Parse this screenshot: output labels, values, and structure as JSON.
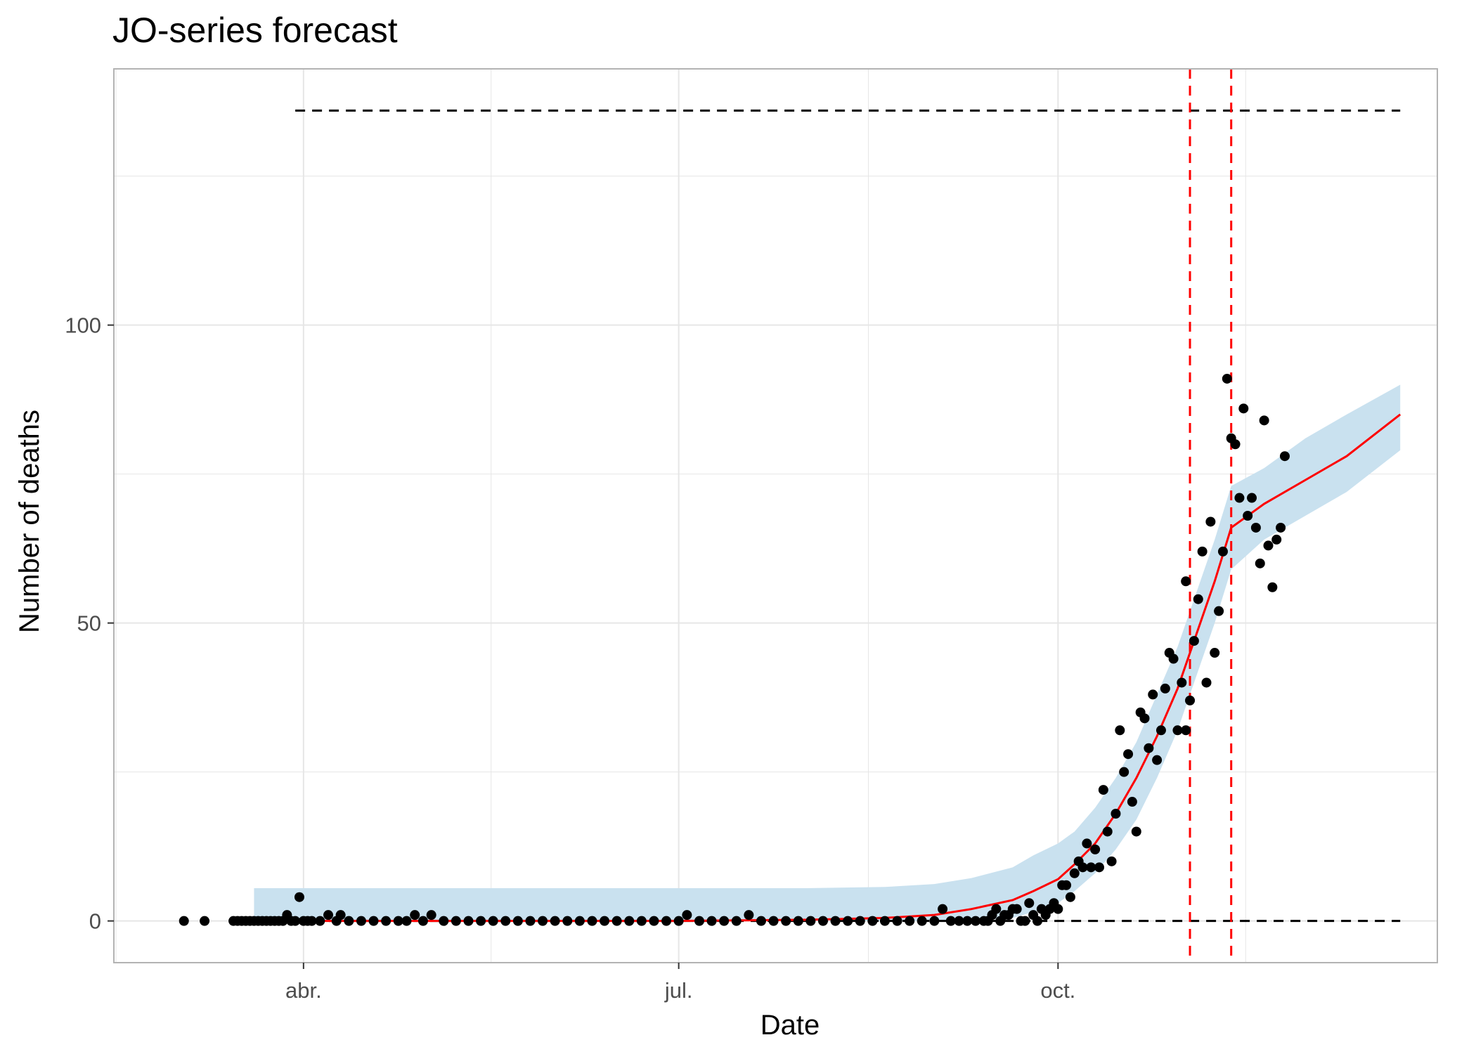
{
  "chart_data": {
    "type": "scatter",
    "title": "JO-series forecast",
    "xlabel": "Date",
    "ylabel": "Number of deaths",
    "x_ticks": [
      {
        "date": "2020-04-01",
        "label": "abr."
      },
      {
        "date": "2020-07-01",
        "label": "jul."
      },
      {
        "date": "2020-10-01",
        "label": "oct."
      }
    ],
    "y_ticks": [
      0,
      50,
      100
    ],
    "xlim": [
      "2020-02-15",
      "2021-01-01"
    ],
    "ylim": [
      -7,
      143
    ],
    "grid": true,
    "colors": {
      "points": "#000000",
      "forecast": "#ff0000",
      "band": "#c9e1ef",
      "reference_lines": "#000000",
      "vertical_markers": "#ff0000",
      "grid": "#e6e6e6",
      "panel_border": "#b3b3b3"
    },
    "reference_lines": {
      "upper": {
        "y": 136,
        "from": "2020-03-30",
        "to": "2020-12-23"
      },
      "lower": {
        "y": 0,
        "from": "2020-03-30",
        "to": "2020-12-23"
      }
    },
    "vertical_markers": [
      "2020-11-02",
      "2020-11-12"
    ],
    "observed": [
      [
        "2020-03-03",
        0
      ],
      [
        "2020-03-08",
        0
      ],
      [
        "2020-03-15",
        0
      ],
      [
        "2020-03-16",
        0
      ],
      [
        "2020-03-17",
        0
      ],
      [
        "2020-03-18",
        0
      ],
      [
        "2020-03-19",
        0
      ],
      [
        "2020-03-20",
        0
      ],
      [
        "2020-03-21",
        0
      ],
      [
        "2020-03-22",
        0
      ],
      [
        "2020-03-23",
        0
      ],
      [
        "2020-03-24",
        0
      ],
      [
        "2020-03-25",
        0
      ],
      [
        "2020-03-26",
        0
      ],
      [
        "2020-03-27",
        0
      ],
      [
        "2020-03-28",
        1
      ],
      [
        "2020-03-29",
        0
      ],
      [
        "2020-03-30",
        0
      ],
      [
        "2020-03-31",
        4
      ],
      [
        "2020-04-01",
        0
      ],
      [
        "2020-04-02",
        0
      ],
      [
        "2020-04-03",
        0
      ],
      [
        "2020-04-05",
        0
      ],
      [
        "2020-04-07",
        1
      ],
      [
        "2020-04-09",
        0
      ],
      [
        "2020-04-10",
        1
      ],
      [
        "2020-04-12",
        0
      ],
      [
        "2020-04-15",
        0
      ],
      [
        "2020-04-18",
        0
      ],
      [
        "2020-04-21",
        0
      ],
      [
        "2020-04-24",
        0
      ],
      [
        "2020-04-26",
        0
      ],
      [
        "2020-04-28",
        1
      ],
      [
        "2020-04-30",
        0
      ],
      [
        "2020-05-02",
        1
      ],
      [
        "2020-05-05",
        0
      ],
      [
        "2020-05-08",
        0
      ],
      [
        "2020-05-11",
        0
      ],
      [
        "2020-05-14",
        0
      ],
      [
        "2020-05-17",
        0
      ],
      [
        "2020-05-20",
        0
      ],
      [
        "2020-05-23",
        0
      ],
      [
        "2020-05-26",
        0
      ],
      [
        "2020-05-29",
        0
      ],
      [
        "2020-06-01",
        0
      ],
      [
        "2020-06-04",
        0
      ],
      [
        "2020-06-07",
        0
      ],
      [
        "2020-06-10",
        0
      ],
      [
        "2020-06-13",
        0
      ],
      [
        "2020-06-16",
        0
      ],
      [
        "2020-06-19",
        0
      ],
      [
        "2020-06-22",
        0
      ],
      [
        "2020-06-25",
        0
      ],
      [
        "2020-06-28",
        0
      ],
      [
        "2020-07-01",
        0
      ],
      [
        "2020-07-03",
        1
      ],
      [
        "2020-07-06",
        0
      ],
      [
        "2020-07-09",
        0
      ],
      [
        "2020-07-12",
        0
      ],
      [
        "2020-07-15",
        0
      ],
      [
        "2020-07-18",
        1
      ],
      [
        "2020-07-21",
        0
      ],
      [
        "2020-07-24",
        0
      ],
      [
        "2020-07-27",
        0
      ],
      [
        "2020-07-30",
        0
      ],
      [
        "2020-08-02",
        0
      ],
      [
        "2020-08-05",
        0
      ],
      [
        "2020-08-08",
        0
      ],
      [
        "2020-08-11",
        0
      ],
      [
        "2020-08-14",
        0
      ],
      [
        "2020-08-17",
        0
      ],
      [
        "2020-08-20",
        0
      ],
      [
        "2020-08-23",
        0
      ],
      [
        "2020-08-26",
        0
      ],
      [
        "2020-08-29",
        0
      ],
      [
        "2020-09-01",
        0
      ],
      [
        "2020-09-03",
        2
      ],
      [
        "2020-09-05",
        0
      ],
      [
        "2020-09-07",
        0
      ],
      [
        "2020-09-09",
        0
      ],
      [
        "2020-09-11",
        0
      ],
      [
        "2020-09-13",
        0
      ],
      [
        "2020-09-14",
        0
      ],
      [
        "2020-09-15",
        1
      ],
      [
        "2020-09-16",
        2
      ],
      [
        "2020-09-17",
        0
      ],
      [
        "2020-09-18",
        1
      ],
      [
        "2020-09-19",
        1
      ],
      [
        "2020-09-20",
        2
      ],
      [
        "2020-09-21",
        2
      ],
      [
        "2020-09-22",
        0
      ],
      [
        "2020-09-23",
        0
      ],
      [
        "2020-09-24",
        3
      ],
      [
        "2020-09-25",
        1
      ],
      [
        "2020-09-26",
        0
      ],
      [
        "2020-09-27",
        2
      ],
      [
        "2020-09-28",
        1
      ],
      [
        "2020-09-29",
        2
      ],
      [
        "2020-09-30",
        3
      ],
      [
        "2020-10-01",
        2
      ],
      [
        "2020-10-02",
        6
      ],
      [
        "2020-10-03",
        6
      ],
      [
        "2020-10-04",
        4
      ],
      [
        "2020-10-05",
        8
      ],
      [
        "2020-10-06",
        10
      ],
      [
        "2020-10-07",
        9
      ],
      [
        "2020-10-08",
        13
      ],
      [
        "2020-10-09",
        9
      ],
      [
        "2020-10-10",
        12
      ],
      [
        "2020-10-11",
        9
      ],
      [
        "2020-10-12",
        22
      ],
      [
        "2020-10-13",
        15
      ],
      [
        "2020-10-14",
        10
      ],
      [
        "2020-10-15",
        18
      ],
      [
        "2020-10-16",
        32
      ],
      [
        "2020-10-17",
        25
      ],
      [
        "2020-10-18",
        28
      ],
      [
        "2020-10-19",
        20
      ],
      [
        "2020-10-20",
        15
      ],
      [
        "2020-10-21",
        35
      ],
      [
        "2020-10-22",
        34
      ],
      [
        "2020-10-23",
        29
      ],
      [
        "2020-10-24",
        38
      ],
      [
        "2020-10-25",
        27
      ],
      [
        "2020-10-26",
        32
      ],
      [
        "2020-10-27",
        39
      ],
      [
        "2020-10-28",
        45
      ],
      [
        "2020-10-29",
        44
      ],
      [
        "2020-10-30",
        32
      ],
      [
        "2020-10-31",
        40
      ],
      [
        "2020-11-01",
        57
      ],
      [
        "2020-11-01",
        32
      ],
      [
        "2020-11-02",
        37
      ],
      [
        "2020-11-03",
        47
      ],
      [
        "2020-11-04",
        54
      ],
      [
        "2020-11-05",
        62
      ],
      [
        "2020-11-06",
        40
      ],
      [
        "2020-11-07",
        67
      ],
      [
        "2020-11-08",
        45
      ],
      [
        "2020-11-09",
        52
      ],
      [
        "2020-11-10",
        62
      ],
      [
        "2020-11-11",
        91
      ],
      [
        "2020-11-12",
        81
      ],
      [
        "2020-11-13",
        80
      ],
      [
        "2020-11-14",
        71
      ],
      [
        "2020-11-15",
        86
      ],
      [
        "2020-11-16",
        68
      ],
      [
        "2020-11-17",
        71
      ],
      [
        "2020-11-18",
        66
      ],
      [
        "2020-11-19",
        60
      ],
      [
        "2020-11-20",
        84
      ],
      [
        "2020-11-21",
        63
      ],
      [
        "2020-11-22",
        56
      ],
      [
        "2020-11-23",
        64
      ],
      [
        "2020-11-24",
        66
      ],
      [
        "2020-11-25",
        78
      ]
    ],
    "forecast_line": {
      "x": [
        "2020-03-30",
        "2020-05-01",
        "2020-06-01",
        "2020-07-01",
        "2020-08-01",
        "2020-08-20",
        "2020-09-01",
        "2020-09-10",
        "2020-09-20",
        "2020-09-25",
        "2020-10-01",
        "2020-10-05",
        "2020-10-10",
        "2020-10-15",
        "2020-10-20",
        "2020-10-25",
        "2020-10-30",
        "2020-11-04",
        "2020-11-08",
        "2020-11-12",
        "2020-11-20",
        "2020-11-30",
        "2020-12-10",
        "2020-12-23"
      ],
      "y": [
        0,
        0,
        0,
        0,
        0.2,
        0.5,
        1,
        2,
        3.5,
        5,
        7,
        9.5,
        13,
        18,
        24,
        31,
        39,
        49,
        57,
        66,
        70,
        74,
        78,
        85
      ]
    },
    "prediction_band": {
      "x": [
        "2020-03-20",
        "2020-05-01",
        "2020-06-01",
        "2020-07-01",
        "2020-08-01",
        "2020-08-20",
        "2020-09-01",
        "2020-09-10",
        "2020-09-20",
        "2020-09-25",
        "2020-10-01",
        "2020-10-05",
        "2020-10-10",
        "2020-10-15",
        "2020-10-20",
        "2020-10-25",
        "2020-10-30",
        "2020-11-04",
        "2020-11-08",
        "2020-11-12",
        "2020-11-20",
        "2020-11-30",
        "2020-12-10",
        "2020-12-23"
      ],
      "lower": [
        0,
        0,
        0,
        0,
        0,
        0,
        0,
        0,
        0.5,
        1.5,
        3,
        5,
        8,
        12,
        17,
        24,
        32,
        42,
        50,
        59,
        64,
        68,
        72,
        79
      ],
      "upper": [
        5.5,
        5.5,
        5.5,
        5.5,
        5.5,
        5.7,
        6.2,
        7.2,
        9,
        11,
        13,
        15,
        19,
        24,
        30,
        38,
        46,
        56,
        64,
        73,
        76,
        81,
        85,
        90
      ]
    }
  }
}
